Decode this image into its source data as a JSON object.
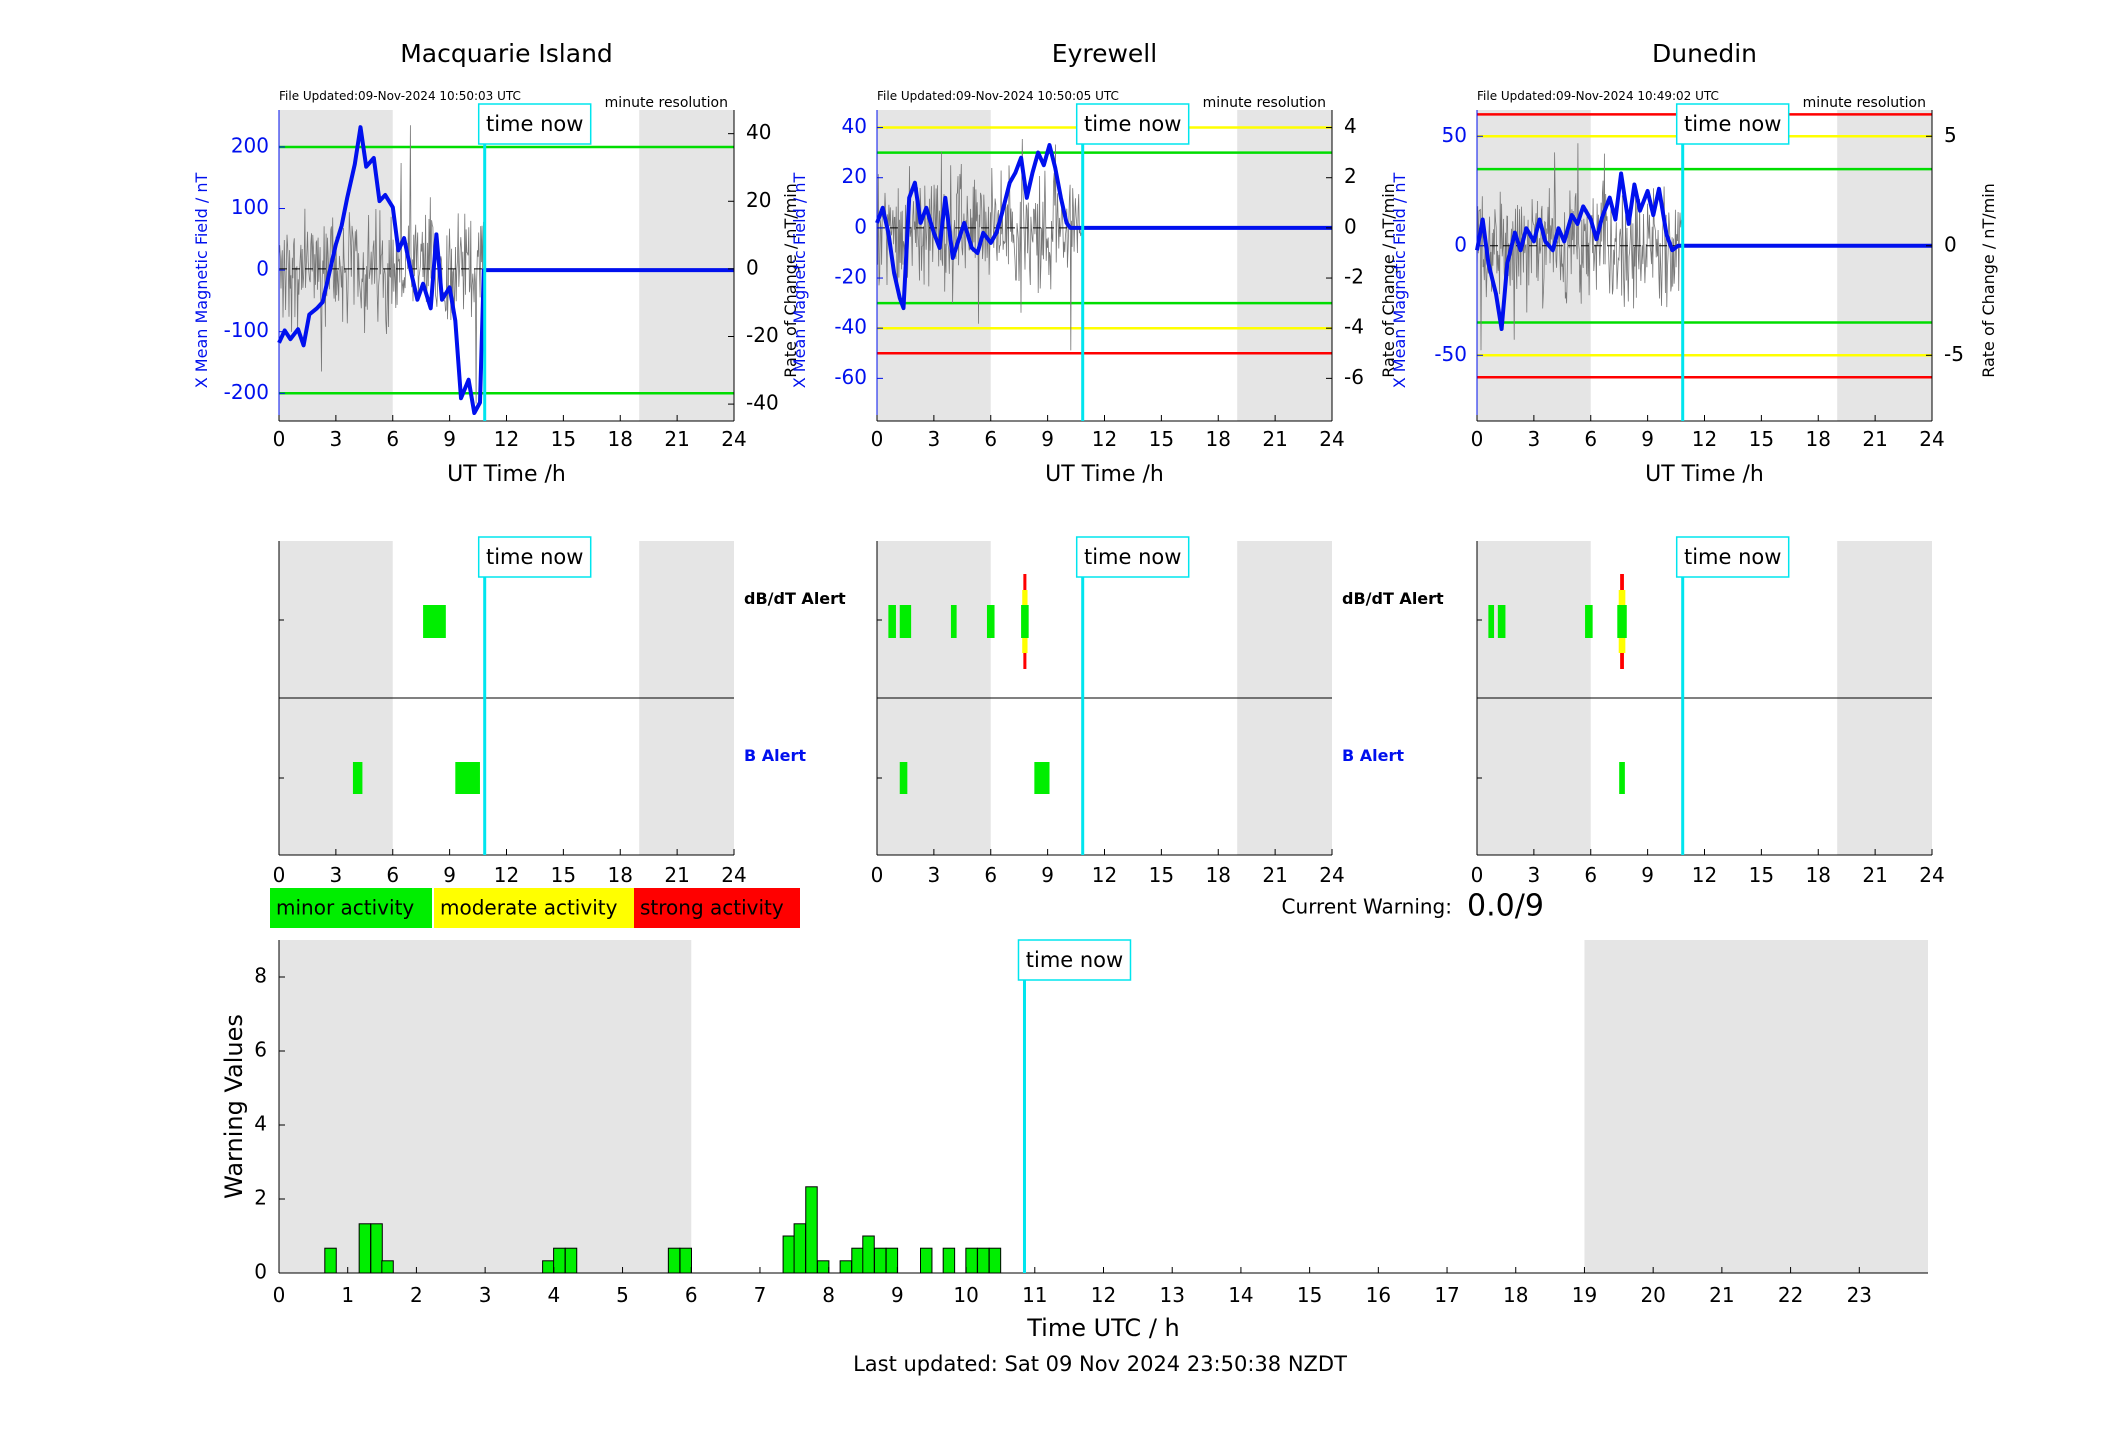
{
  "sites": [
    {
      "title": "Macquarie Island",
      "file_updated": "File Updated:09-Nov-2024 10:50:03 UTC",
      "resolution": "minute resolution",
      "left_ylabel": "X Mean Magnetic Field / nT",
      "right_ylabel": "Rate of Change / nT/min",
      "left_ylim": [
        -245,
        260
      ],
      "left_ticks": [
        "200",
        "100",
        "0",
        "-100",
        "-200"
      ],
      "left_tick_values": [
        200,
        100,
        0,
        -100,
        -200
      ],
      "right_ylim": [
        -45,
        47
      ],
      "right_ticks": [
        "40",
        "20",
        "0",
        "-20",
        "-40"
      ],
      "right_tick_values": [
        40,
        20,
        0,
        -20,
        -40
      ],
      "threshold_lines": [
        {
          "value": 200,
          "color": "#00dd00"
        },
        {
          "value": -200,
          "color": "#00dd00"
        }
      ],
      "field_trace": [
        [
          0,
          -118
        ],
        [
          0.3,
          -98
        ],
        [
          0.6,
          -112
        ],
        [
          1,
          -96
        ],
        [
          1.3,
          -122
        ],
        [
          1.6,
          -72
        ],
        [
          2,
          -62
        ],
        [
          2.3,
          -52
        ],
        [
          2.6,
          -12
        ],
        [
          3,
          42
        ],
        [
          3.3,
          72
        ],
        [
          3.6,
          118
        ],
        [
          4,
          172
        ],
        [
          4.3,
          232
        ],
        [
          4.6,
          168
        ],
        [
          5,
          182
        ],
        [
          5.3,
          112
        ],
        [
          5.6,
          122
        ],
        [
          6,
          102
        ],
        [
          6.3,
          32
        ],
        [
          6.6,
          52
        ],
        [
          7,
          -8
        ],
        [
          7.3,
          -48
        ],
        [
          7.6,
          -22
        ],
        [
          8,
          -62
        ],
        [
          8.3,
          58
        ],
        [
          8.6,
          -48
        ],
        [
          9,
          -28
        ],
        [
          9.3,
          -82
        ],
        [
          9.6,
          -208
        ],
        [
          10,
          -178
        ],
        [
          10.3,
          -232
        ],
        [
          10.6,
          -215
        ],
        [
          10.8,
          0
        ],
        [
          24,
          0
        ]
      ],
      "alerts": {
        "dbdt": [
          {
            "start": 7.6,
            "end": 8.8,
            "level": "minor"
          }
        ],
        "b": [
          {
            "start": 3.9,
            "end": 4.4,
            "level": "minor"
          },
          {
            "start": 9.3,
            "end": 10.6,
            "level": "minor"
          }
        ]
      }
    },
    {
      "title": "Eyrewell",
      "file_updated": "File Updated:09-Nov-2024 10:50:05 UTC",
      "resolution": "minute resolution",
      "left_ylabel": "X Mean Magnetic Field / nT",
      "right_ylabel": "Rate of Change / nT/min",
      "left_ylim": [
        -77,
        47
      ],
      "left_ticks": [
        "40",
        "20",
        "0",
        "-20",
        "-40",
        "-60"
      ],
      "left_tick_values": [
        40,
        20,
        0,
        -20,
        -40,
        -60
      ],
      "right_ylim": [
        -7.7,
        4.7
      ],
      "right_ticks": [
        "4",
        "2",
        "0",
        "-2",
        "-4",
        "-6"
      ],
      "right_tick_values": [
        4,
        2,
        0,
        -2,
        -4,
        -6
      ],
      "threshold_lines": [
        {
          "value": 40,
          "color": "#ffff00"
        },
        {
          "value": 30,
          "color": "#00dd00"
        },
        {
          "value": -30,
          "color": "#00dd00"
        },
        {
          "value": -40,
          "color": "#ffff00"
        },
        {
          "value": -50,
          "color": "#ff0000"
        }
      ],
      "field_trace": [
        [
          0,
          2
        ],
        [
          0.3,
          8
        ],
        [
          0.6,
          -2
        ],
        [
          0.9,
          -18
        ],
        [
          1.2,
          -28
        ],
        [
          1.4,
          -32
        ],
        [
          1.7,
          12
        ],
        [
          2,
          18
        ],
        [
          2.3,
          2
        ],
        [
          2.6,
          8
        ],
        [
          3,
          -2
        ],
        [
          3.3,
          -8
        ],
        [
          3.6,
          12
        ],
        [
          4,
          -12
        ],
        [
          4.3,
          -5
        ],
        [
          4.6,
          2
        ],
        [
          5,
          -8
        ],
        [
          5.3,
          -10
        ],
        [
          5.6,
          -2
        ],
        [
          6,
          -6
        ],
        [
          6.3,
          -2
        ],
        [
          6.6,
          6
        ],
        [
          7,
          18
        ],
        [
          7.3,
          22
        ],
        [
          7.6,
          28
        ],
        [
          7.9,
          12
        ],
        [
          8.2,
          22
        ],
        [
          8.5,
          30
        ],
        [
          8.8,
          25
        ],
        [
          9.1,
          33
        ],
        [
          9.4,
          24
        ],
        [
          9.7,
          12
        ],
        [
          10,
          2
        ],
        [
          10.2,
          0
        ],
        [
          24,
          0
        ]
      ],
      "alerts": {
        "dbdt": [
          {
            "start": 0.6,
            "end": 1.0,
            "level": "minor"
          },
          {
            "start": 1.2,
            "end": 1.8,
            "level": "minor"
          },
          {
            "start": 3.9,
            "end": 4.2,
            "level": "minor"
          },
          {
            "start": 5.8,
            "end": 6.2,
            "level": "minor"
          },
          {
            "start": 7.6,
            "end": 8.0,
            "level": "strong"
          }
        ],
        "b": [
          {
            "start": 1.2,
            "end": 1.6,
            "level": "minor"
          },
          {
            "start": 8.3,
            "end": 9.1,
            "level": "minor"
          }
        ]
      }
    },
    {
      "title": "Dunedin",
      "file_updated": "File Updated:09-Nov-2024 10:49:02 UTC",
      "resolution": "minute resolution",
      "left_ylabel": "X Mean Magnetic Field / nT",
      "right_ylabel": "Rate of Change / nT/min",
      "left_ylim": [
        -80,
        62
      ],
      "left_ticks": [
        "50",
        "0",
        "-50"
      ],
      "left_tick_values": [
        50,
        0,
        -50
      ],
      "right_ylim": [
        -8,
        6.2
      ],
      "right_ticks": [
        "5",
        "0",
        "-5"
      ],
      "right_tick_values": [
        5,
        0,
        -5
      ],
      "threshold_lines": [
        {
          "value": 60,
          "color": "#ff0000"
        },
        {
          "value": 50,
          "color": "#ffff00"
        },
        {
          "value": 35,
          "color": "#00dd00"
        },
        {
          "value": -35,
          "color": "#00dd00"
        },
        {
          "value": -50,
          "color": "#ffff00"
        },
        {
          "value": -60,
          "color": "#ff0000"
        }
      ],
      "field_trace": [
        [
          0,
          -2
        ],
        [
          0.3,
          12
        ],
        [
          0.6,
          -8
        ],
        [
          1,
          -22
        ],
        [
          1.3,
          -38
        ],
        [
          1.6,
          -8
        ],
        [
          2,
          6
        ],
        [
          2.3,
          -2
        ],
        [
          2.6,
          8
        ],
        [
          3,
          2
        ],
        [
          3.3,
          12
        ],
        [
          3.6,
          2
        ],
        [
          4,
          -2
        ],
        [
          4.3,
          8
        ],
        [
          4.6,
          2
        ],
        [
          5,
          14
        ],
        [
          5.3,
          10
        ],
        [
          5.6,
          18
        ],
        [
          6,
          12
        ],
        [
          6.3,
          3
        ],
        [
          6.6,
          13
        ],
        [
          7,
          22
        ],
        [
          7.3,
          12
        ],
        [
          7.6,
          33
        ],
        [
          8,
          10
        ],
        [
          8.3,
          28
        ],
        [
          8.6,
          16
        ],
        [
          9,
          25
        ],
        [
          9.3,
          14
        ],
        [
          9.6,
          26
        ],
        [
          10,
          5
        ],
        [
          10.3,
          -2
        ],
        [
          10.6,
          0
        ],
        [
          10.8,
          0
        ],
        [
          24,
          0
        ]
      ],
      "alerts": {
        "dbdt": [
          {
            "start": 0.6,
            "end": 0.9,
            "level": "minor"
          },
          {
            "start": 1.1,
            "end": 1.5,
            "level": "minor"
          },
          {
            "start": 5.7,
            "end": 6.1,
            "level": "minor"
          },
          {
            "start": 7.4,
            "end": 7.9,
            "level": "strong"
          }
        ],
        "b": [
          {
            "start": 7.5,
            "end": 7.8,
            "level": "minor"
          }
        ]
      }
    }
  ],
  "time_xlabel": "UT Time /h",
  "time_xticks": [
    "0",
    "3",
    "6",
    "9",
    "12",
    "15",
    "18",
    "21",
    "24"
  ],
  "time_xtick_values": [
    0,
    3,
    6,
    9,
    12,
    15,
    18,
    21,
    24
  ],
  "time_now_label": "time now",
  "time_now_hour": 10.85,
  "night_shading_hours": [
    [
      0,
      6
    ],
    [
      19,
      24
    ]
  ],
  "alert_labels": {
    "dbdt": "dB/dT Alert",
    "b": "B Alert"
  },
  "legend": [
    {
      "label": "minor activity",
      "color": "#00ee00"
    },
    {
      "label": "moderate activity",
      "color": "#ffff00"
    },
    {
      "label": "strong activity",
      "color": "#ff0000"
    }
  ],
  "current_warning_label": "Current Warning:",
  "current_warning_value": "0.0/9",
  "chart_data": {
    "type": "bar",
    "xlabel": "Time UTC / h",
    "ylabel": "Warning Values",
    "xlim": [
      0,
      24
    ],
    "ylim": [
      0,
      9
    ],
    "x_ticks": [
      "0",
      "1",
      "2",
      "3",
      "4",
      "5",
      "6",
      "7",
      "8",
      "9",
      "10",
      "11",
      "12",
      "13",
      "14",
      "15",
      "16",
      "17",
      "18",
      "19",
      "20",
      "21",
      "22",
      "23"
    ],
    "y_ticks": [
      "0",
      "2",
      "4",
      "6",
      "8"
    ],
    "y_tick_values": [
      0,
      2,
      4,
      6,
      8
    ],
    "grid": false,
    "bar_color": "#00ee00",
    "bar_width_hours": 0.1667,
    "bars": [
      {
        "x": 0.75,
        "value": 0.67
      },
      {
        "x": 1.25,
        "value": 1.33
      },
      {
        "x": 1.42,
        "value": 1.33
      },
      {
        "x": 1.58,
        "value": 0.33
      },
      {
        "x": 3.92,
        "value": 0.33
      },
      {
        "x": 4.08,
        "value": 0.67
      },
      {
        "x": 4.25,
        "value": 0.67
      },
      {
        "x": 5.75,
        "value": 0.67
      },
      {
        "x": 5.92,
        "value": 0.67
      },
      {
        "x": 7.42,
        "value": 1.0
      },
      {
        "x": 7.58,
        "value": 1.33
      },
      {
        "x": 7.75,
        "value": 2.33
      },
      {
        "x": 7.92,
        "value": 0.33
      },
      {
        "x": 8.25,
        "value": 0.33
      },
      {
        "x": 8.42,
        "value": 0.67
      },
      {
        "x": 8.58,
        "value": 1.0
      },
      {
        "x": 8.75,
        "value": 0.67
      },
      {
        "x": 8.92,
        "value": 0.67
      },
      {
        "x": 9.42,
        "value": 0.67
      },
      {
        "x": 9.75,
        "value": 0.67
      },
      {
        "x": 10.08,
        "value": 0.67
      },
      {
        "x": 10.25,
        "value": 0.67
      },
      {
        "x": 10.42,
        "value": 0.67
      }
    ]
  },
  "footer": "Last updated: Sat 09 Nov 2024 23:50:38 NZDT"
}
